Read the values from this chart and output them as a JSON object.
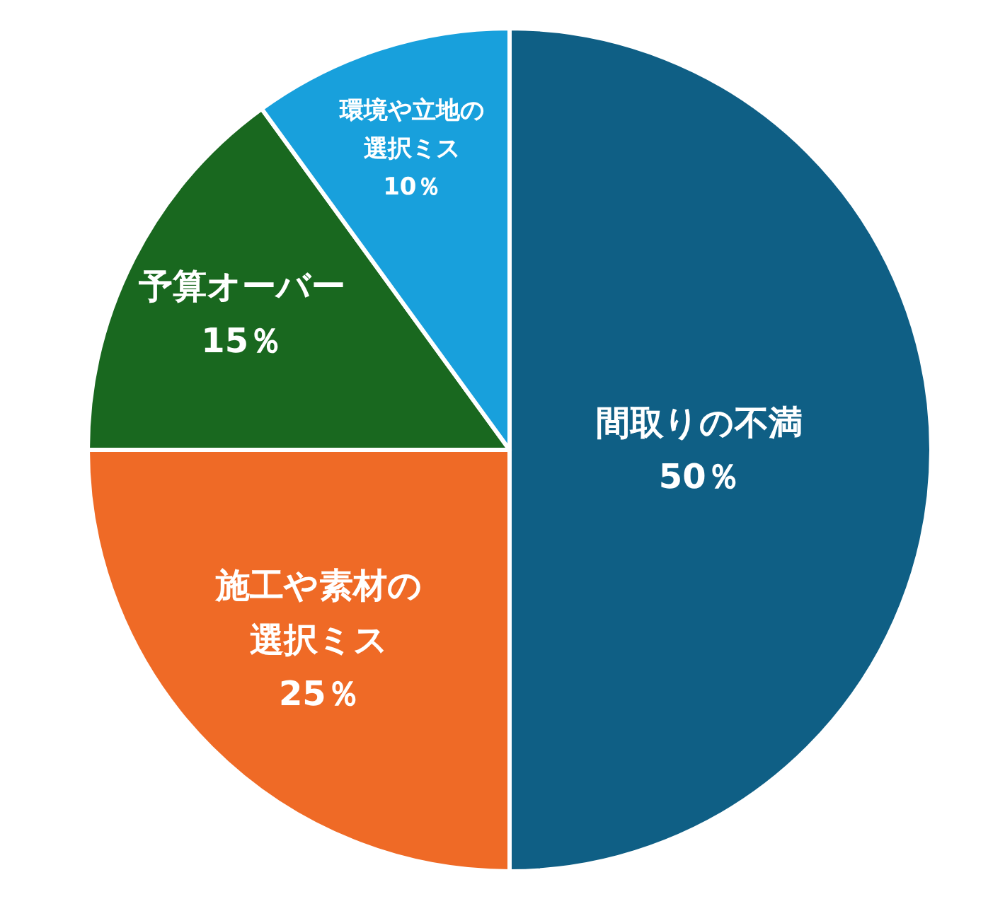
{
  "chart_data": {
    "type": "pie",
    "categories": [
      "間取りの不満",
      "施工や素材の選択ミス",
      "予算オーバー",
      "環境や立地の選択ミス"
    ],
    "values": [
      50,
      25,
      15,
      10
    ],
    "colors": [
      "#0f5f85",
      "#ef6a26",
      "#19681f",
      "#18a0dc"
    ],
    "value_labels": [
      "50％",
      "25％",
      "15％",
      "10％"
    ],
    "legend": false
  }
}
